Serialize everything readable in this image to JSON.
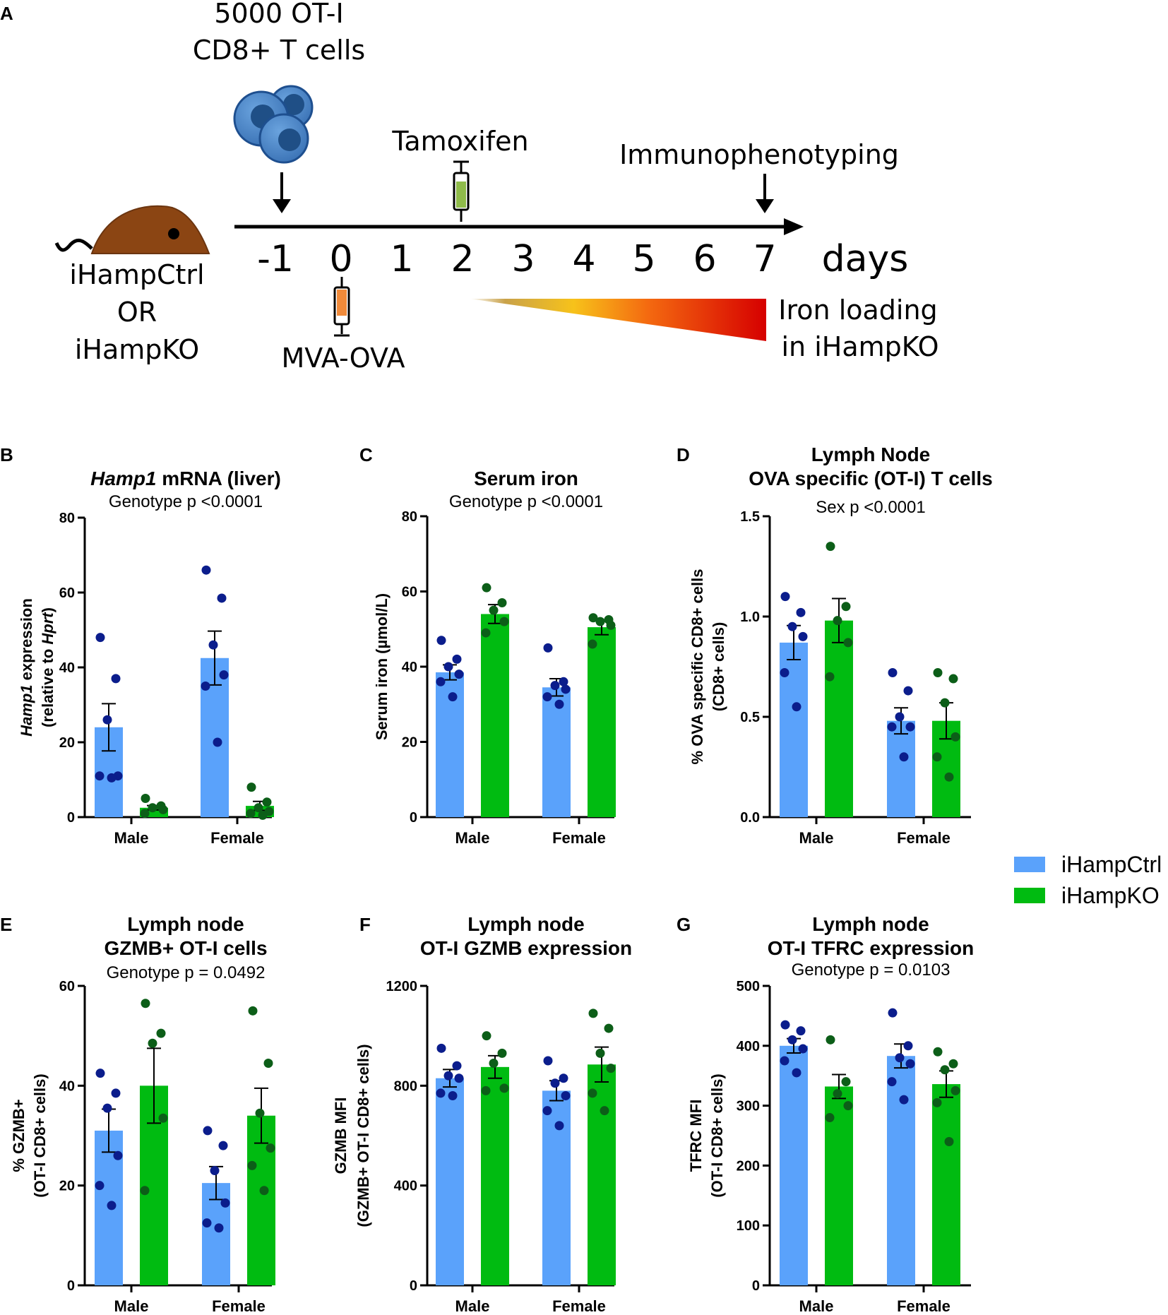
{
  "colors": {
    "ctrl": "#5aa2fb",
    "ko": "#00bb11",
    "ctrl_dot": "#0b1d8c",
    "ko_dot": "#0c5e18"
  },
  "panel_a": {
    "letter": "A",
    "cells_label": [
      "5000 OT-I",
      "CD8+ T cells"
    ],
    "tamoxifen": "Tamoxifen",
    "immuno": "Immunophenotyping",
    "mouse_label": [
      "iHampCtrl",
      "OR",
      "iHampKO"
    ],
    "days": [
      "-1",
      "0",
      "1",
      "2",
      "3",
      "4",
      "5",
      "6",
      "7"
    ],
    "days_label": "days",
    "mva": "MVA-OVA",
    "iron_label": [
      "Iron loading",
      "in iHampKO"
    ],
    "icons": [
      "mouse-icon",
      "cells-icon",
      "syringe-icon",
      "arrow-icon"
    ]
  },
  "legend": {
    "ctrl": "iHampCtrl",
    "ko": "iHampKO"
  },
  "chart_data": [
    {
      "id": "B",
      "type": "bar",
      "title": [
        "Hamp1 mRNA (liver)"
      ],
      "title_italic_word": "Hamp1",
      "stat": "Genotype p   <0.0001",
      "ylabel": [
        "Hamp1 expression",
        "(relative to Hprt)"
      ],
      "ylim": [
        0,
        80
      ],
      "yticks": [
        "0",
        "20",
        "40",
        "60",
        "80"
      ],
      "categories": [
        "Male",
        "Female"
      ],
      "series": [
        {
          "name": "iHampCtrl",
          "values": [
            24,
            42.5
          ],
          "sem": [
            6.3,
            7.2
          ],
          "points": [
            [
              48,
              37,
              26,
              11,
              11,
              10.5
            ],
            [
              66,
              58.5,
              46,
              38,
              35,
              20
            ]
          ]
        },
        {
          "name": "iHampKO",
          "values": [
            2.5,
            3
          ],
          "sem": [
            0.6,
            1.2
          ],
          "points": [
            [
              5,
              3,
              2.5,
              2,
              1
            ],
            [
              8,
              4,
              2.5,
              1.5,
              1,
              0.5
            ]
          ]
        }
      ]
    },
    {
      "id": "C",
      "type": "bar",
      "title": [
        "Serum iron"
      ],
      "stat": "Genotype p   <0.0001",
      "ylabel": [
        "Serum iron  (µmol/L)"
      ],
      "ylim": [
        0,
        80
      ],
      "yticks": [
        "0",
        "20",
        "40",
        "60",
        "80"
      ],
      "categories": [
        "Male",
        "Female"
      ],
      "series": [
        {
          "name": "iHampCtrl",
          "values": [
            38.5,
            34.5
          ],
          "sem": [
            2,
            2.3
          ],
          "points": [
            [
              47,
              42,
              40,
              38,
              36,
              32
            ],
            [
              45,
              36,
              35,
              34,
              32,
              30
            ]
          ]
        },
        {
          "name": "iHampKO",
          "values": [
            54,
            50.5
          ],
          "sem": [
            2.5,
            2
          ],
          "points": [
            [
              61,
              57,
              55,
              52,
              49
            ],
            [
              53,
              52.5,
              52,
              51,
              46
            ]
          ]
        }
      ]
    },
    {
      "id": "D",
      "type": "bar",
      "title": [
        "Lymph Node",
        "OVA specific (OT-I) T cells"
      ],
      "stat": "Sex p   <0.0001",
      "ylabel": [
        "% OVA specific CD8+ cells",
        "(CD8+ cells)"
      ],
      "ylim": [
        0,
        1.5
      ],
      "yticks": [
        "0.0",
        "0.5",
        "1.0",
        "1.5"
      ],
      "categories": [
        "Male",
        "Female"
      ],
      "series": [
        {
          "name": "iHampCtrl",
          "values": [
            0.87,
            0.48
          ],
          "sem": [
            0.085,
            0.065
          ],
          "points": [
            [
              1.1,
              1.02,
              0.95,
              0.9,
              0.72,
              0.55
            ],
            [
              0.72,
              0.63,
              0.5,
              0.45,
              0.45,
              0.3
            ]
          ]
        },
        {
          "name": "iHampKO",
          "values": [
            0.98,
            0.48
          ],
          "sem": [
            0.11,
            0.09
          ],
          "points": [
            [
              1.35,
              1.05,
              0.98,
              0.87,
              0.7
            ],
            [
              0.72,
              0.69,
              0.57,
              0.4,
              0.3,
              0.2
            ]
          ]
        }
      ]
    },
    {
      "id": "E",
      "type": "bar",
      "title": [
        "Lymph node",
        "GZMB+ OT-I cells"
      ],
      "stat": "Genotype p =  0.0492",
      "ylabel": [
        "% GZMB+",
        "(OT-I CD8+ cells)"
      ],
      "ylim": [
        0,
        60
      ],
      "yticks": [
        "0",
        "20",
        "40",
        "60"
      ],
      "categories": [
        "Male",
        "Female"
      ],
      "series": [
        {
          "name": "iHampCtrl",
          "values": [
            31,
            20.5
          ],
          "sem": [
            4.3,
            3.3
          ],
          "points": [
            [
              42.5,
              38.5,
              35.5,
              26,
              20,
              16
            ],
            [
              31,
              28,
              23,
              16.5,
              12.5,
              11.5
            ]
          ]
        },
        {
          "name": "iHampKO",
          "values": [
            40,
            34
          ],
          "sem": [
            7.5,
            5.5
          ],
          "points": [
            [
              56.5,
              50.5,
              48.5,
              33.5,
              19
            ],
            [
              55,
              44.5,
              34.5,
              27.5,
              24,
              19
            ]
          ]
        }
      ]
    },
    {
      "id": "F",
      "type": "bar",
      "title": [
        "Lymph node",
        "OT-I GZMB expression"
      ],
      "stat": "",
      "ylabel": [
        "GZMB MFI",
        "(GZMB+ OT-I CD8+ cells)"
      ],
      "ylim": [
        0,
        1200
      ],
      "yticks": [
        "0",
        "400",
        "800",
        "1200"
      ],
      "categories": [
        "Male",
        "Female"
      ],
      "series": [
        {
          "name": "iHampCtrl",
          "values": [
            830,
            780
          ],
          "sem": [
            35,
            40
          ],
          "points": [
            [
              950,
              880,
              840,
              830,
              770,
              760
            ],
            [
              900,
              830,
              810,
              760,
              700,
              640
            ]
          ]
        },
        {
          "name": "iHampKO",
          "values": [
            875,
            885
          ],
          "sem": [
            45,
            70
          ],
          "points": [
            [
              1000,
              930,
              890,
              790,
              780
            ],
            [
              1090,
              1030,
              930,
              870,
              770,
              700
            ]
          ]
        }
      ]
    },
    {
      "id": "G",
      "type": "bar",
      "title": [
        "Lymph node",
        "OT-I TFRC expression"
      ],
      "stat": "Genotype p =  0.0103",
      "ylabel": [
        "TFRC MFI",
        "(OT-I CD8+ cells)"
      ],
      "ylim": [
        0,
        500
      ],
      "yticks": [
        "0",
        "100",
        "200",
        "300",
        "400",
        "500"
      ],
      "categories": [
        "Male",
        "Female"
      ],
      "series": [
        {
          "name": "iHampCtrl",
          "values": [
            400,
            383
          ],
          "sem": [
            12,
            20
          ],
          "points": [
            [
              435,
              425,
              410,
              395,
              375,
              355
            ],
            [
              455,
              400,
              380,
              370,
              340,
              310
            ]
          ]
        },
        {
          "name": "iHampKO",
          "values": [
            332,
            336
          ],
          "sem": [
            20,
            22
          ],
          "points": [
            [
              410,
              340,
              320,
              300,
              280
            ],
            [
              390,
              370,
              360,
              325,
              305,
              240
            ]
          ]
        }
      ]
    }
  ]
}
